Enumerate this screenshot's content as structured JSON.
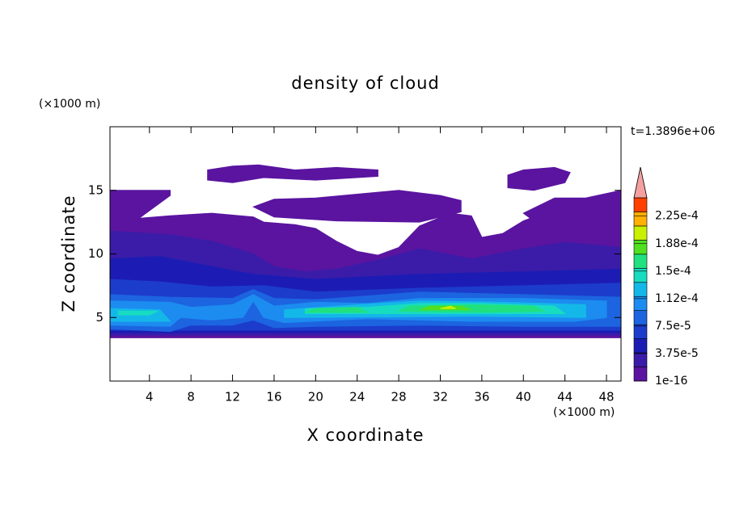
{
  "chart_data": {
    "type": "contour",
    "title": "density of cloud",
    "x_label": "X coordinate",
    "y_label": "Z coordinate",
    "x_unit": "(×1000 m)",
    "y_unit": "(×1000 m)",
    "annotation": "t=1.3896e+06",
    "xlim": [
      0.2,
      49.4
    ],
    "ylim": [
      0,
      20
    ],
    "xticks": [
      4,
      8,
      12,
      16,
      20,
      24,
      28,
      32,
      36,
      40,
      44,
      48
    ],
    "yticks": [
      5,
      10,
      15
    ],
    "colorbar": {
      "lim": [
        1e-16,
        0.00025
      ],
      "ticks": [
        1e-16,
        {
          "value": 3.75e-05,
          "label": "3.75e-5"
        },
        {
          "value": 7.5e-05,
          "label": "7.5e-5"
        },
        {
          "value": 0.0001125,
          "label": "1.12e-4"
        },
        {
          "value": 0.00015,
          "label": "1.5e-4"
        },
        {
          "value": 0.0001875,
          "label": "1.88e-4"
        },
        {
          "value": 0.000225,
          "label": "2.25e-4"
        }
      ],
      "colors": [
        "#5a14a0",
        "#3a1ca8",
        "#1c1cb4",
        "#1c3ccc",
        "#1c64e0",
        "#1c8cf0",
        "#14b8e8",
        "#18dcc0",
        "#20e080",
        "#50e020",
        "#c8f000",
        "#ffb000",
        "#ff4000"
      ],
      "extend_color": "#f4a0a0"
    },
    "contours": [
      {
        "level": 1e-16,
        "color": "#5a14a0",
        "points": [
          [
            0.2,
            3.4
          ],
          [
            49.4,
            3.4
          ],
          [
            49.4,
            15
          ],
          [
            47,
            14.5
          ],
          [
            45,
            13.6
          ],
          [
            42,
            13.2
          ],
          [
            40,
            12.6
          ],
          [
            38,
            11.6
          ],
          [
            36,
            11.3
          ],
          [
            35,
            13
          ],
          [
            33,
            13.2
          ],
          [
            30,
            12.2
          ],
          [
            28,
            10.5
          ],
          [
            26,
            9.9
          ],
          [
            24,
            10.2
          ],
          [
            22,
            11
          ],
          [
            20,
            12
          ],
          [
            18,
            12.3
          ],
          [
            15,
            12.5
          ],
          [
            14,
            12.9
          ],
          [
            10,
            13.2
          ],
          [
            6,
            13
          ],
          [
            3,
            12.8
          ],
          [
            6,
            14.6
          ],
          [
            6,
            15
          ],
          [
            0.2,
            15
          ]
        ]
      },
      {
        "level": 1e-16,
        "color": "#5a14a0",
        "points": [
          [
            9.6,
            16.6
          ],
          [
            12,
            16.9
          ],
          [
            14.5,
            17
          ],
          [
            18,
            16.6
          ],
          [
            22,
            16.8
          ],
          [
            26,
            16.6
          ],
          [
            26,
            16.1
          ],
          [
            20,
            15.8
          ],
          [
            15,
            16
          ],
          [
            12,
            15.6
          ],
          [
            9.6,
            15.8
          ]
        ]
      },
      {
        "level": 1e-16,
        "color": "#5a14a0",
        "points": [
          [
            14,
            13.7
          ],
          [
            16,
            14.3
          ],
          [
            20,
            14.4
          ],
          [
            24,
            14.7
          ],
          [
            28,
            15
          ],
          [
            32,
            14.6
          ],
          [
            34,
            14.2
          ],
          [
            34,
            13.3
          ],
          [
            30,
            12.5
          ],
          [
            22,
            12.6
          ],
          [
            16,
            12.9
          ]
        ]
      },
      {
        "level": 1e-16,
        "color": "#5a14a0",
        "points": [
          [
            38.5,
            16.2
          ],
          [
            40,
            16.6
          ],
          [
            43,
            16.8
          ],
          [
            44.5,
            16.4
          ],
          [
            44,
            15.6
          ],
          [
            41,
            15
          ],
          [
            38.5,
            15.2
          ]
        ]
      },
      {
        "level": 1e-16,
        "color": "#5a14a0",
        "points": [
          [
            40,
            13.2
          ],
          [
            43,
            14.4
          ],
          [
            46,
            14.4
          ],
          [
            49.4,
            15
          ],
          [
            49.4,
            12.5
          ],
          [
            45,
            12.4
          ],
          [
            41,
            12.6
          ]
        ]
      },
      {
        "level": 1.875e-05,
        "color": "#3a1ca8",
        "points": [
          [
            0.2,
            3.6
          ],
          [
            49.4,
            3.6
          ],
          [
            49.4,
            10.5
          ],
          [
            44,
            10.9
          ],
          [
            40,
            10.4
          ],
          [
            35,
            9.6
          ],
          [
            30,
            10.4
          ],
          [
            26,
            9.5
          ],
          [
            22,
            8.8
          ],
          [
            19,
            8.6
          ],
          [
            16,
            9
          ],
          [
            14,
            10
          ],
          [
            10,
            11
          ],
          [
            6,
            11.5
          ],
          [
            0.2,
            11.8
          ]
        ]
      },
      {
        "level": 3.75e-05,
        "color": "#1c1cb4",
        "points": [
          [
            0.2,
            3.8
          ],
          [
            49.4,
            3.8
          ],
          [
            49.4,
            8.8
          ],
          [
            40,
            8.6
          ],
          [
            30,
            8.4
          ],
          [
            20,
            8
          ],
          [
            14,
            8.4
          ],
          [
            10,
            9
          ],
          [
            5,
            9.8
          ],
          [
            0.2,
            9.6
          ]
        ]
      },
      {
        "level": 5.625e-05,
        "color": "#1c3ccc",
        "points": [
          [
            0.2,
            4
          ],
          [
            49.4,
            4
          ],
          [
            49.4,
            7.7
          ],
          [
            40,
            7.5
          ],
          [
            30,
            7.3
          ],
          [
            20,
            7
          ],
          [
            15,
            7.5
          ],
          [
            10,
            7.4
          ],
          [
            5,
            7.8
          ],
          [
            0.2,
            8
          ]
        ]
      },
      {
        "level": 7.5e-05,
        "color": "#1c64e0",
        "points": [
          [
            0.2,
            4.1
          ],
          [
            6,
            3.9
          ],
          [
            8,
            4.4
          ],
          [
            12,
            4.4
          ],
          [
            14,
            4.8
          ],
          [
            16,
            4.2
          ],
          [
            20,
            4.3
          ],
          [
            30,
            4.4
          ],
          [
            40,
            4.3
          ],
          [
            49.4,
            4.3
          ],
          [
            49.4,
            6.6
          ],
          [
            40,
            6.8
          ],
          [
            30,
            7
          ],
          [
            20,
            6.4
          ],
          [
            16,
            6.5
          ],
          [
            14,
            7.2
          ],
          [
            12,
            6.5
          ],
          [
            6,
            6.6
          ],
          [
            0.2,
            6.8
          ]
        ]
      },
      {
        "level": 9.375e-05,
        "color": "#1c8cf0",
        "points": [
          [
            0.2,
            4.4
          ],
          [
            6,
            4.3
          ],
          [
            7,
            5
          ],
          [
            10,
            4.8
          ],
          [
            13,
            5
          ],
          [
            14,
            6.3
          ],
          [
            15,
            5
          ],
          [
            17,
            4.6
          ],
          [
            25,
            4.9
          ],
          [
            35,
            4.7
          ],
          [
            45,
            4.7
          ],
          [
            48,
            5
          ],
          [
            48,
            6.3
          ],
          [
            40,
            6.5
          ],
          [
            35,
            6.5
          ],
          [
            30,
            6.5
          ],
          [
            25,
            6.1
          ],
          [
            20,
            6.2
          ],
          [
            16,
            5.9
          ],
          [
            14,
            6.8
          ],
          [
            12,
            6
          ],
          [
            8,
            5.8
          ],
          [
            6,
            6.2
          ],
          [
            0.2,
            6.3
          ]
        ]
      },
      {
        "level": 0.0001125,
        "color": "#14b8e8",
        "points": [
          [
            0.3,
            4.7
          ],
          [
            6,
            4.7
          ],
          [
            5,
            5.6
          ],
          [
            0.3,
            5.7
          ]
        ]
      },
      {
        "level": 0.0001125,
        "color": "#14b8e8",
        "points": [
          [
            17,
            5
          ],
          [
            35,
            5.1
          ],
          [
            46,
            5
          ],
          [
            46,
            6
          ],
          [
            38,
            6.2
          ],
          [
            30,
            6.3
          ],
          [
            24,
            6
          ],
          [
            17,
            5.6
          ]
        ]
      },
      {
        "level": 0.00013125,
        "color": "#18dcc0",
        "points": [
          [
            1,
            5.2
          ],
          [
            4,
            5.2
          ],
          [
            4.8,
            5.5
          ],
          [
            1,
            5.5
          ]
        ]
      },
      {
        "level": 0.00013125,
        "color": "#18dcc0",
        "points": [
          [
            19,
            5.3
          ],
          [
            36,
            5.3
          ],
          [
            44,
            5.3
          ],
          [
            43,
            5.9
          ],
          [
            36,
            6.1
          ],
          [
            30,
            6.1
          ],
          [
            25,
            5.8
          ],
          [
            19,
            5.7
          ]
        ]
      },
      {
        "level": 0.00015,
        "color": "#20e080",
        "points": [
          [
            28,
            5.5
          ],
          [
            36,
            5.4
          ],
          [
            42,
            5.5
          ],
          [
            41,
            5.9
          ],
          [
            35,
            6
          ],
          [
            29,
            5.9
          ]
        ]
      },
      {
        "level": 0.00015,
        "color": "#20e080",
        "points": [
          [
            19,
            5.4
          ],
          [
            25,
            5.4
          ],
          [
            24,
            5.8
          ],
          [
            20,
            5.7
          ]
        ]
      },
      {
        "level": 0.00016875,
        "color": "#50e020",
        "points": [
          [
            30,
            5.6
          ],
          [
            35,
            5.6
          ],
          [
            34,
            5.9
          ],
          [
            31,
            5.9
          ]
        ]
      },
      {
        "level": 0.0001875,
        "color": "#c8f000",
        "points": [
          [
            32,
            5.7
          ],
          [
            33.5,
            5.7
          ],
          [
            33,
            5.9
          ]
        ]
      }
    ]
  }
}
